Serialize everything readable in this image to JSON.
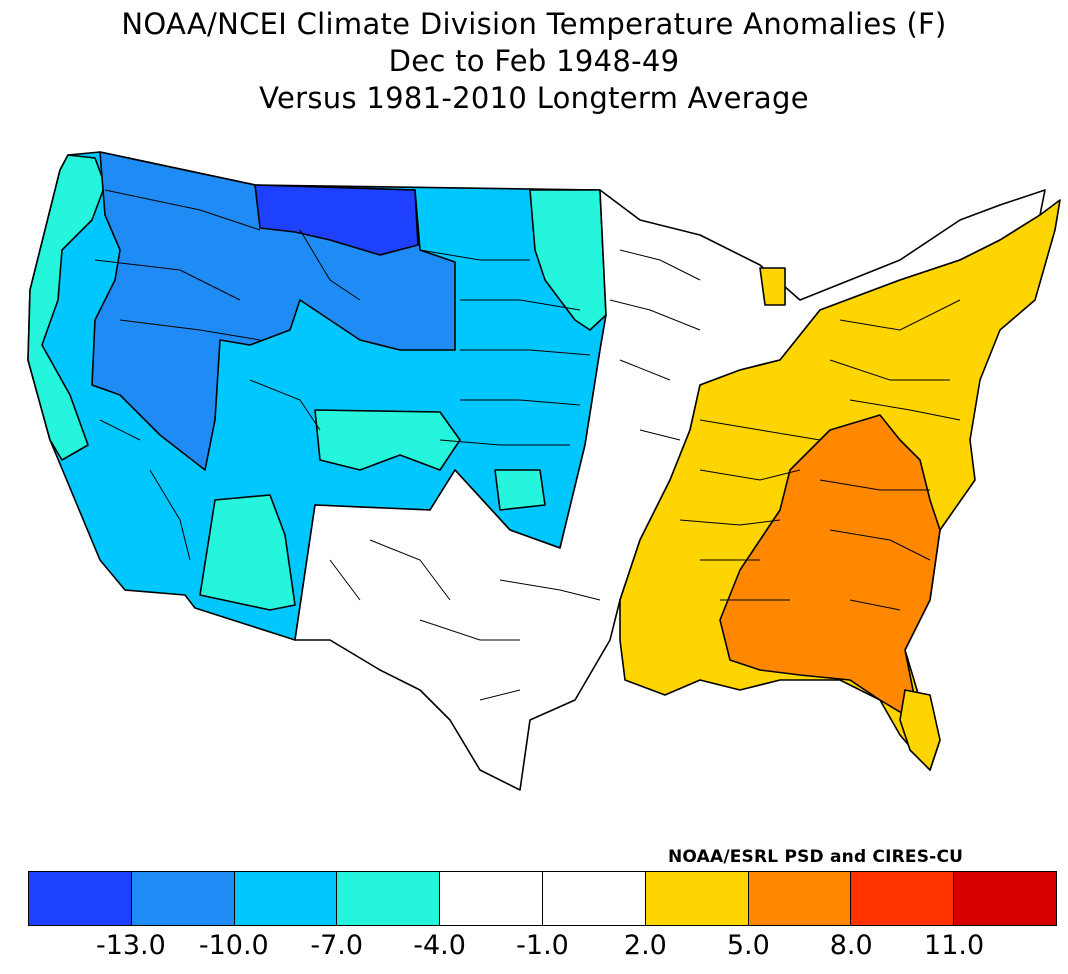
{
  "title": {
    "line1": "NOAA/NCEI Climate Division Temperature Anomalies (F)",
    "line2": "Dec to Feb 1948-49",
    "line3": "Versus 1981-2010 Longterm Average"
  },
  "credit": "NOAA/ESRL PSD and CIRES-CU",
  "colorbar": {
    "bins": [
      {
        "range": "< -13.0",
        "color": "#1e40ff"
      },
      {
        "range": "-13.0 to -10.0",
        "color": "#1f8cf5"
      },
      {
        "range": "-10.0 to -7.0",
        "color": "#00c8ff"
      },
      {
        "range": "-7.0 to -4.0",
        "color": "#25f5dc"
      },
      {
        "range": "-4.0 to -1.0",
        "color": "#ffffff"
      },
      {
        "range": "-1.0 to 2.0",
        "color": "#ffffff"
      },
      {
        "range": "2.0 to 5.0",
        "color": "#ffd500"
      },
      {
        "range": "5.0 to 8.0",
        "color": "#ff8800"
      },
      {
        "range": "8.0 to 11.0",
        "color": "#ff3300"
      },
      {
        "range": "> 11.0",
        "color": "#d60000"
      }
    ],
    "tick_labels": [
      "-13.0",
      "-10.0",
      "-7.0",
      "-4.0",
      "-1.0",
      "2.0",
      "5.0",
      "8.0",
      "11.0"
    ]
  },
  "map_regions": [
    {
      "region": "Pacific coast",
      "anomaly_class": "-7.0 to -4.0",
      "color": "#25f5dc"
    },
    {
      "region": "Northern Rockies and Great Basin",
      "anomaly_class": "-13.0 to -10.0",
      "color": "#1f8cf5"
    },
    {
      "region": "Montana / North Dakota high plains",
      "anomaly_class": "< -13.0",
      "color": "#1e40ff"
    },
    {
      "region": "California, Southwest and Central Plains",
      "anomaly_class": "-10.0 to -7.0",
      "color": "#00c8ff"
    },
    {
      "region": "Arizona, Colorado, eastern Dakotas",
      "anomaly_class": "-7.0 to -4.0",
      "color": "#25f5dc"
    },
    {
      "region": "Texas, Oklahoma, Midwest, New England",
      "anomaly_class": "-4.0 to 2.0",
      "color": "#ffffff"
    },
    {
      "region": "Eastern US",
      "anomaly_class": "2.0 to 5.0",
      "color": "#ffd500"
    },
    {
      "region": "Southeast and Appalachians",
      "anomaly_class": "5.0 to 8.0",
      "color": "#ff8800"
    }
  ]
}
